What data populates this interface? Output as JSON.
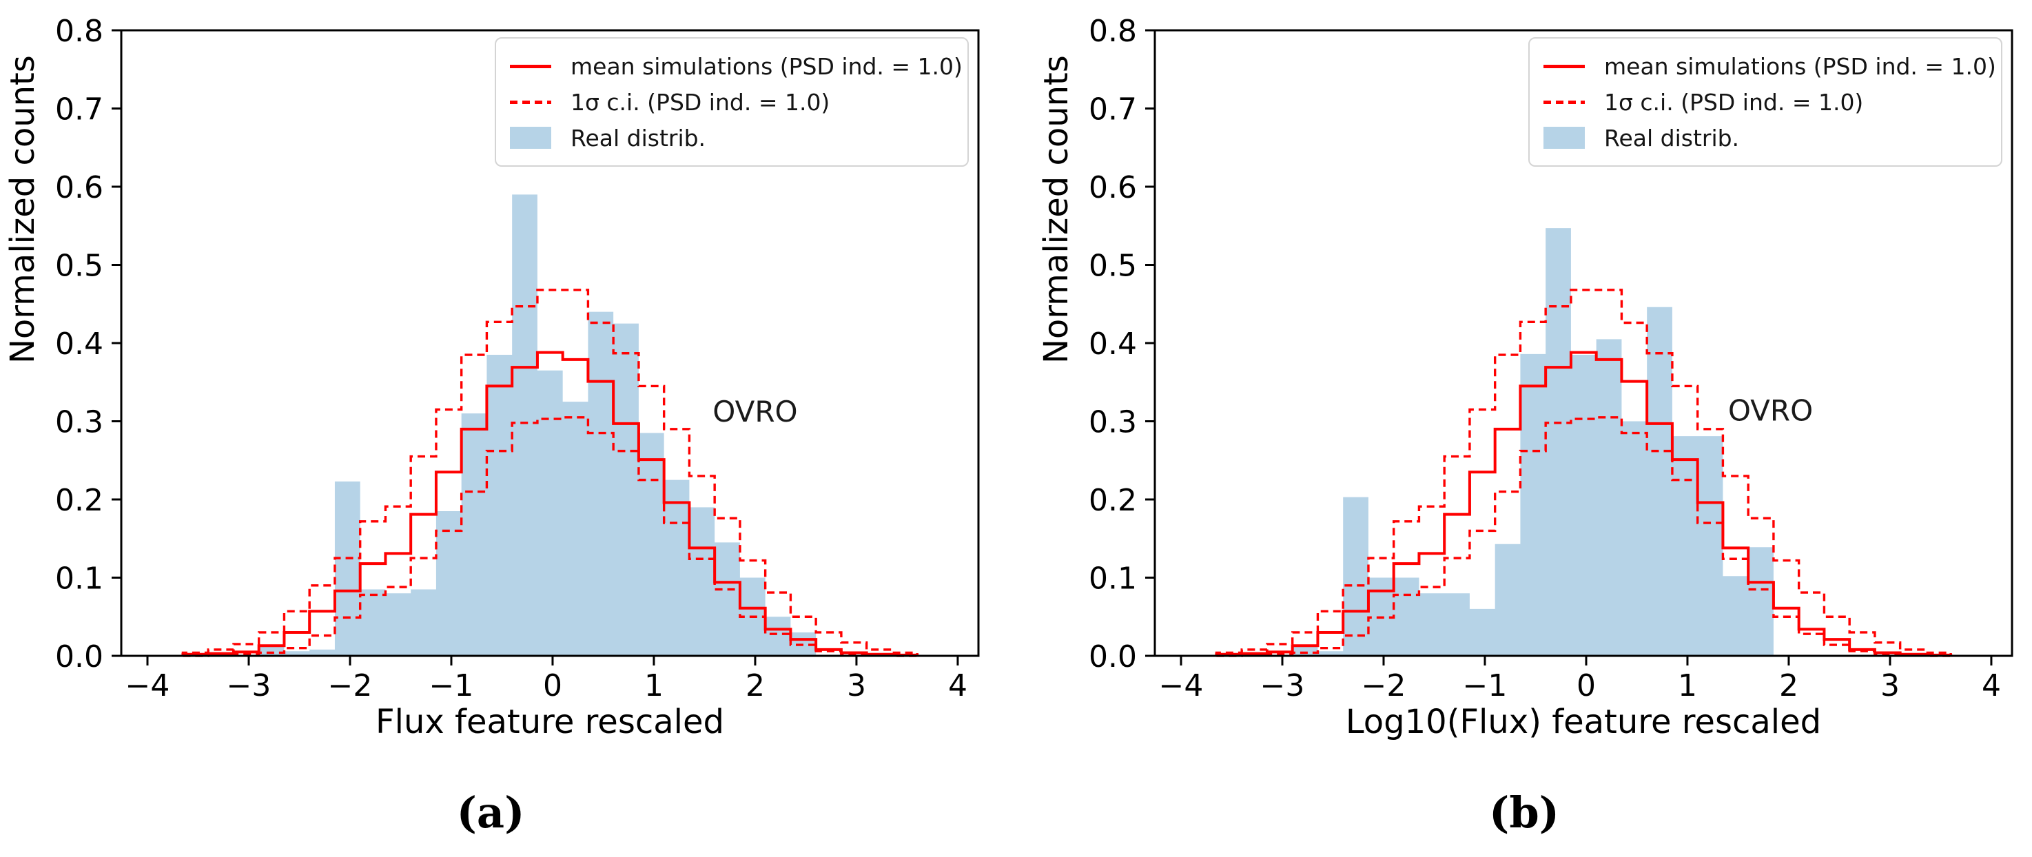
{
  "figure": {
    "background": "#ffffff"
  },
  "colors": {
    "real_fill": "#b6d3e7",
    "simulation_red": "#ff0000",
    "axis": "#000000",
    "legend_border": "#d4d4d4"
  },
  "chart_data": [
    {
      "type": "bar",
      "subtype": "overlaid-step-histograms",
      "panel_label": "(a)",
      "xlabel": "Flux feature rescaled",
      "ylabel": "Normalized counts",
      "annotation": {
        "text": "OVRO",
        "x": 2.0,
        "y": 0.312
      },
      "xlim": [
        -4.2585,
        4.2045
      ],
      "ylim": [
        0,
        0.8
      ],
      "grid": false,
      "legend_position": "upper right",
      "x_ticks": {
        "values": [
          -4,
          -3,
          -2,
          -1,
          0,
          1,
          2,
          3,
          4
        ],
        "labels": [
          "−4",
          "−3",
          "−2",
          "−1",
          "0",
          "1",
          "2",
          "3",
          "4"
        ]
      },
      "y_ticks": {
        "values": [
          0.0,
          0.1,
          0.2,
          0.3,
          0.4,
          0.5,
          0.6,
          0.7,
          0.8
        ],
        "labels": [
          "0.0",
          "0.1",
          "0.2",
          "0.3",
          "0.4",
          "0.5",
          "0.6",
          "0.7",
          "0.8"
        ]
      },
      "bins": {
        "start": -3.65,
        "width": 0.25,
        "count": 29
      },
      "series": [
        {
          "id": "real-distrib",
          "name": "Real distrib.",
          "style": "filled",
          "color": "#b6d3e7",
          "values": [
            0,
            0,
            0,
            0.012,
            0.006,
            0.008,
            0.223,
            0.085,
            0.08,
            0.085,
            0.185,
            0.31,
            0.385,
            0.59,
            0.365,
            0.325,
            0.44,
            0.425,
            0.285,
            0.225,
            0.19,
            0.145,
            0.1,
            0.05,
            0.03,
            0,
            0,
            0,
            0
          ]
        },
        {
          "id": "mean-simulations",
          "name": "mean simulations (PSD ind. = 1.0)",
          "style": "solid",
          "color": "#ff0000",
          "values": [
            0.002,
            0.003,
            0.005,
            0.013,
            0.03,
            0.057,
            0.083,
            0.118,
            0.131,
            0.181,
            0.235,
            0.29,
            0.345,
            0.369,
            0.388,
            0.379,
            0.351,
            0.297,
            0.251,
            0.196,
            0.138,
            0.094,
            0.061,
            0.034,
            0.021,
            0.008,
            0.004,
            0.002,
            0.001
          ]
        },
        {
          "id": "ci-upper",
          "name": "1σ c.i. upper (PSD ind. = 1.0)",
          "style": "dashed",
          "color": "#ff0000",
          "values": [
            0.004,
            0.008,
            0.015,
            0.03,
            0.057,
            0.09,
            0.125,
            0.172,
            0.191,
            0.255,
            0.315,
            0.385,
            0.427,
            0.447,
            0.468,
            0.468,
            0.426,
            0.387,
            0.345,
            0.29,
            0.23,
            0.176,
            0.122,
            0.081,
            0.05,
            0.03,
            0.017,
            0.008,
            0.004
          ]
        },
        {
          "id": "ci-lower",
          "name": "1σ c.i. lower (PSD ind. = 1.0)",
          "style": "dashed",
          "color": "#ff0000",
          "values": [
            0,
            0.001,
            0.002,
            0.004,
            0.01,
            0.026,
            0.049,
            0.078,
            0.088,
            0.125,
            0.16,
            0.21,
            0.262,
            0.298,
            0.303,
            0.305,
            0.285,
            0.262,
            0.225,
            0.17,
            0.124,
            0.085,
            0.05,
            0.028,
            0.014,
            0.006,
            0.002,
            0.001,
            0
          ]
        }
      ],
      "legend": [
        {
          "label": "mean simulations (PSD ind. = 1.0)",
          "swatch": "solid-line"
        },
        {
          "label": "1σ c.i. (PSD ind. = 1.0)",
          "swatch": "dashed-line"
        },
        {
          "label": "Real distrib.",
          "swatch": "filled-rect"
        }
      ]
    },
    {
      "type": "bar",
      "subtype": "overlaid-step-histograms",
      "panel_label": "(b)",
      "xlabel": "Log10(Flux) feature rescaled",
      "ylabel": "Normalized counts",
      "annotation": {
        "text": "OVRO",
        "x": 1.82,
        "y": 0.313
      },
      "xlim": [
        -4.2585,
        4.2045
      ],
      "ylim": [
        0,
        0.8
      ],
      "grid": false,
      "legend_position": "upper right",
      "x_ticks": {
        "values": [
          -4,
          -3,
          -2,
          -1,
          0,
          1,
          2,
          3,
          4
        ],
        "labels": [
          "−4",
          "−3",
          "−2",
          "−1",
          "0",
          "1",
          "2",
          "3",
          "4"
        ]
      },
      "y_ticks": {
        "values": [
          0.0,
          0.1,
          0.2,
          0.3,
          0.4,
          0.5,
          0.6,
          0.7,
          0.8
        ],
        "labels": [
          "0.0",
          "0.1",
          "0.2",
          "0.3",
          "0.4",
          "0.5",
          "0.6",
          "0.7",
          "0.8"
        ]
      },
      "bins": {
        "start": -3.65,
        "width": 0.25,
        "count": 29
      },
      "series": [
        {
          "id": "real-distrib",
          "name": "Real distrib.",
          "style": "filled",
          "color": "#b6d3e7",
          "values": [
            0,
            0,
            0,
            0.012,
            0.006,
            0.203,
            0.1,
            0.1,
            0.08,
            0.08,
            0.06,
            0.143,
            0.386,
            0.547,
            0.385,
            0.405,
            0.3,
            0.446,
            0.281,
            0.281,
            0.102,
            0.139,
            0,
            0,
            0,
            0,
            0,
            0,
            0
          ]
        },
        {
          "id": "mean-simulations",
          "name": "mean simulations (PSD ind. = 1.0)",
          "style": "solid",
          "color": "#ff0000",
          "values": [
            0.002,
            0.003,
            0.005,
            0.013,
            0.03,
            0.057,
            0.083,
            0.118,
            0.131,
            0.181,
            0.235,
            0.29,
            0.345,
            0.369,
            0.388,
            0.379,
            0.351,
            0.297,
            0.251,
            0.196,
            0.138,
            0.094,
            0.061,
            0.034,
            0.021,
            0.008,
            0.004,
            0.002,
            0.001
          ]
        },
        {
          "id": "ci-upper",
          "name": "1σ c.i. upper (PSD ind. = 1.0)",
          "style": "dashed",
          "color": "#ff0000",
          "values": [
            0.004,
            0.008,
            0.015,
            0.03,
            0.057,
            0.09,
            0.125,
            0.172,
            0.191,
            0.255,
            0.315,
            0.385,
            0.427,
            0.447,
            0.468,
            0.468,
            0.426,
            0.387,
            0.345,
            0.29,
            0.23,
            0.176,
            0.122,
            0.081,
            0.05,
            0.03,
            0.017,
            0.008,
            0.004
          ]
        },
        {
          "id": "ci-lower",
          "name": "1σ c.i. lower (PSD ind. = 1.0)",
          "style": "dashed",
          "color": "#ff0000",
          "values": [
            0,
            0.001,
            0.002,
            0.004,
            0.01,
            0.026,
            0.049,
            0.078,
            0.088,
            0.125,
            0.16,
            0.21,
            0.262,
            0.298,
            0.303,
            0.305,
            0.285,
            0.262,
            0.225,
            0.17,
            0.124,
            0.085,
            0.05,
            0.028,
            0.014,
            0.006,
            0.002,
            0.001,
            0
          ]
        }
      ],
      "legend": [
        {
          "label": "mean simulations (PSD ind. = 1.0)",
          "swatch": "solid-line"
        },
        {
          "label": "1σ c.i. (PSD ind. = 1.0)",
          "swatch": "dashed-line"
        },
        {
          "label": "Real distrib.",
          "swatch": "filled-rect"
        }
      ]
    }
  ]
}
